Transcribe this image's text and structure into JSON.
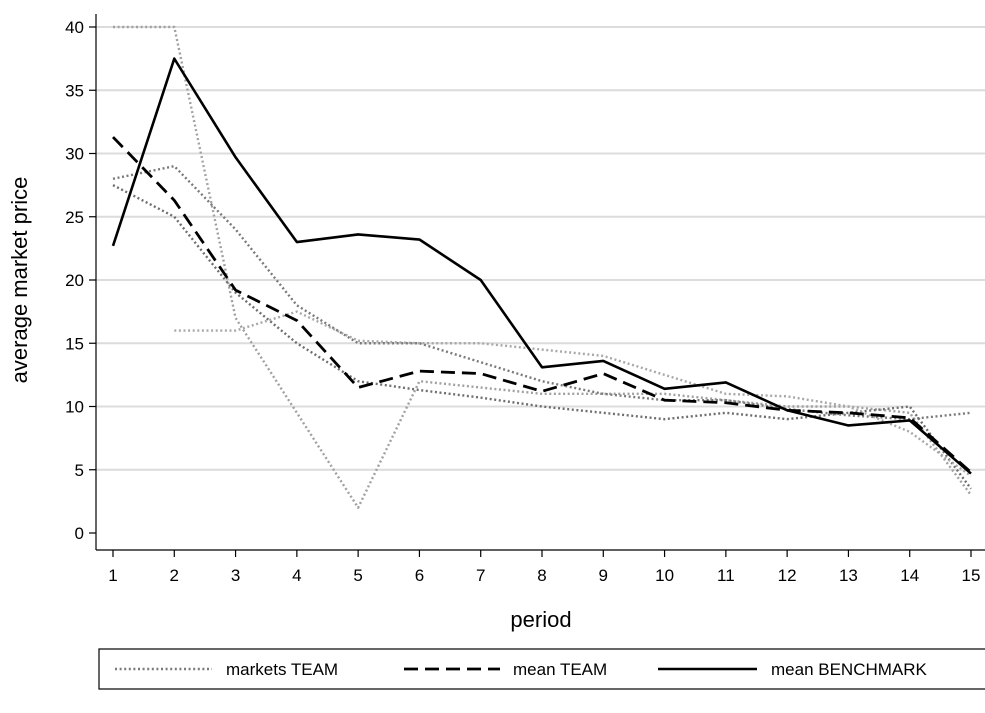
{
  "chart_data": {
    "type": "line",
    "xlabel": "period",
    "ylabel": "average market price",
    "xlim": [
      1,
      15
    ],
    "ylim": [
      0,
      40
    ],
    "xticks": [
      1,
      2,
      3,
      4,
      5,
      6,
      7,
      8,
      9,
      10,
      11,
      12,
      13,
      14,
      15
    ],
    "yticks": [
      0,
      5,
      10,
      15,
      20,
      25,
      30,
      35,
      40
    ],
    "grid": "horizontal",
    "legend_position": "bottom",
    "legend": [
      "markets TEAM",
      "mean TEAM",
      "mean BENCHMARK"
    ],
    "series": [
      {
        "name": "markets TEAM",
        "style": "dotted",
        "color": "#a0a0a0",
        "x": [
          1,
          2,
          3,
          4,
          5,
          6,
          7,
          8,
          9,
          10,
          11,
          12,
          13,
          14,
          15
        ],
        "values": [
          40,
          40,
          17,
          9.5,
          2,
          12,
          11.5,
          11,
          11,
          11,
          10.5,
          10,
          10,
          9.5,
          3
        ]
      },
      {
        "name": "markets TEAM",
        "style": "dotted",
        "color": "#7a7a7a",
        "x": [
          1,
          2,
          3,
          4,
          5,
          6,
          7,
          8,
          9,
          10,
          11,
          12,
          13,
          14,
          15
        ],
        "values": [
          28,
          29,
          24,
          18,
          15,
          15,
          13.5,
          12,
          11,
          10.5,
          10.5,
          9.8,
          9.3,
          9,
          9.5
        ]
      },
      {
        "name": "markets TEAM",
        "style": "dotted",
        "color": "#6e6e6e",
        "x": [
          1,
          2,
          3,
          4,
          5,
          6,
          7,
          8,
          9,
          10,
          11,
          12,
          13,
          14,
          15
        ],
        "values": [
          27.5,
          25,
          19,
          15,
          12,
          11.3,
          10.7,
          10,
          9.5,
          9,
          9.5,
          9,
          9.5,
          10,
          3.5
        ]
      },
      {
        "name": "markets TEAM",
        "style": "dotted",
        "color": "#a8a8a8",
        "x": [
          2,
          3,
          4,
          5,
          6,
          7,
          8,
          9,
          10,
          11,
          12,
          13,
          14,
          15
        ],
        "values": [
          16,
          16,
          17.5,
          15.2,
          15,
          15,
          14.5,
          14,
          12.5,
          11,
          10.8,
          10,
          8,
          4.5
        ]
      },
      {
        "name": "mean TEAM",
        "style": "dashed",
        "color": "#000000",
        "x": [
          1,
          2,
          3,
          4,
          5,
          6,
          7,
          8,
          9,
          10,
          11,
          12,
          13,
          14,
          15
        ],
        "values": [
          31.3,
          26.3,
          19.2,
          16.8,
          11.5,
          12.8,
          12.6,
          11.2,
          12.6,
          10.5,
          10.3,
          9.7,
          9.5,
          9.1,
          4.8
        ]
      },
      {
        "name": "mean BENCHMARK",
        "style": "solid",
        "color": "#000000",
        "x": [
          1,
          2,
          3,
          4,
          5,
          6,
          7,
          8,
          9,
          10,
          11,
          12,
          13,
          14,
          15
        ],
        "values": [
          22.7,
          37.5,
          29.7,
          23,
          23.6,
          23.2,
          20,
          13.1,
          13.6,
          11.4,
          11.9,
          9.7,
          8.5,
          8.9,
          4.7
        ]
      }
    ]
  }
}
